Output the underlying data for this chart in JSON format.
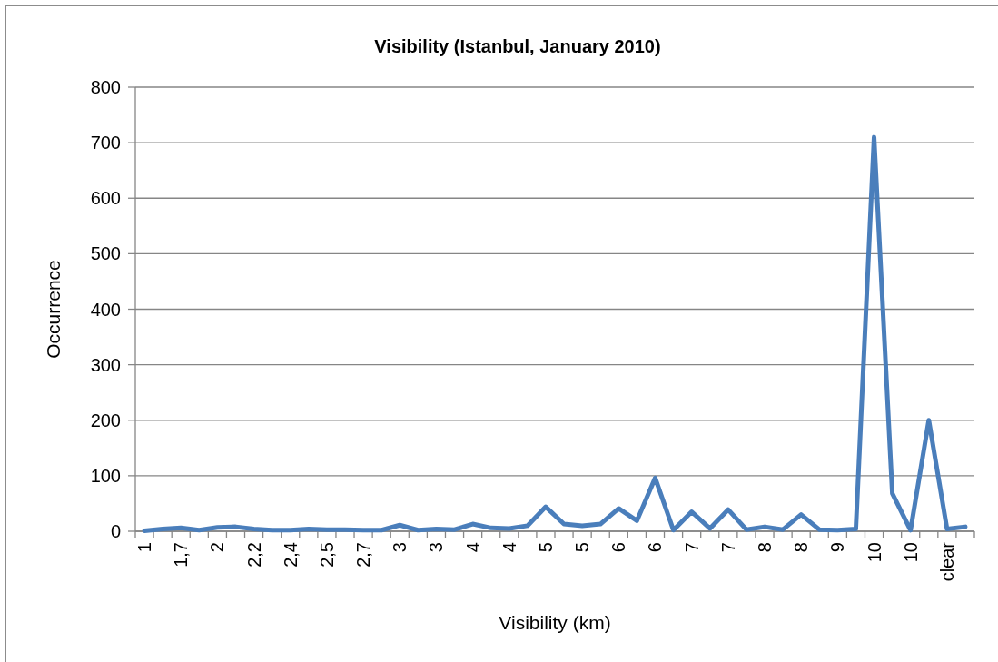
{
  "chart_data": {
    "type": "line",
    "title": "Visibility (Istanbul, January 2010)",
    "xlabel": "Visibility (km)",
    "ylabel": "Occurrence",
    "categories": [
      "1",
      null,
      "1,7",
      null,
      "2",
      null,
      "2,2",
      null,
      "2,4",
      null,
      "2,5",
      null,
      "2,7",
      null,
      "3",
      null,
      "3",
      null,
      "4",
      null,
      "4",
      null,
      "5",
      null,
      "5",
      null,
      "6",
      null,
      "6",
      null,
      "7",
      null,
      "7",
      null,
      "8",
      null,
      "8",
      null,
      "9",
      null,
      "10",
      null,
      "10",
      null,
      "clear",
      null
    ],
    "values": [
      1,
      4,
      6,
      2,
      7,
      8,
      4,
      2,
      2,
      4,
      3,
      3,
      2,
      2,
      11,
      2,
      4,
      3,
      13,
      6,
      5,
      10,
      44,
      13,
      10,
      13,
      41,
      19,
      96,
      2,
      35,
      5,
      39,
      3,
      8,
      3,
      30,
      3,
      2,
      4,
      710,
      68,
      2,
      200,
      4,
      8
    ],
    "color": "#4a7ebb",
    "ylim": [
      0,
      800
    ],
    "yticks": [
      0,
      100,
      200,
      300,
      400,
      500,
      600,
      700,
      800
    ],
    "grid": "y"
  }
}
